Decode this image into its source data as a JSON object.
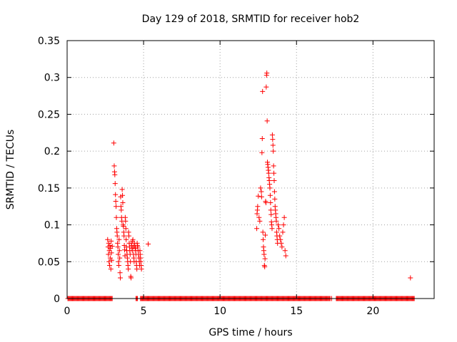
{
  "chart_data": {
    "type": "scatter",
    "title": "Day 129 of 2018, SRMTID for receiver hob2",
    "xlabel": "GPS time / hours",
    "ylabel": "SRMTID / TECUs",
    "xlim": [
      0,
      24
    ],
    "ylim": [
      0,
      0.35
    ],
    "xticks": [
      0,
      5,
      10,
      15,
      20
    ],
    "xtick_labels": [
      "0",
      "5",
      "10",
      "15",
      "20"
    ],
    "yticks": [
      0,
      0.05,
      0.1,
      0.15,
      0.2,
      0.25,
      0.3,
      0.35
    ],
    "ytick_labels": [
      "0",
      "0.05",
      "0.1",
      "0.15",
      "0.2",
      "0.25",
      "0.3",
      "0.35"
    ],
    "grid": true,
    "legend": false,
    "marker": "plus",
    "marker_color": "#ff0000",
    "zero_series": {
      "description_values": "dense band of points at SRMTID = 0",
      "ranges": [
        [
          0.05,
          2.95
        ],
        [
          4.8,
          17.2
        ],
        [
          17.6,
          22.7
        ]
      ],
      "step": 0.05,
      "extra_points": [
        4.5,
        4.55,
        4.6,
        17.3
      ]
    },
    "series": [
      {
        "name": "SRMTID",
        "points": [
          [
            2.65,
            0.08
          ],
          [
            2.68,
            0.07
          ],
          [
            2.7,
            0.06
          ],
          [
            2.72,
            0.075
          ],
          [
            2.74,
            0.05
          ],
          [
            2.76,
            0.065
          ],
          [
            2.78,
            0.045
          ],
          [
            2.8,
            0.072
          ],
          [
            2.82,
            0.055
          ],
          [
            2.84,
            0.068
          ],
          [
            2.86,
            0.04
          ],
          [
            2.88,
            0.078
          ],
          [
            2.9,
            0.062
          ],
          [
            2.92,
            0.052
          ],
          [
            2.95,
            0.071
          ],
          [
            3.05,
            0.211
          ],
          [
            3.08,
            0.18
          ],
          [
            3.1,
            0.172
          ],
          [
            3.12,
            0.168
          ],
          [
            3.14,
            0.156
          ],
          [
            3.16,
            0.141
          ],
          [
            3.18,
            0.132
          ],
          [
            3.2,
            0.125
          ],
          [
            3.22,
            0.11
          ],
          [
            3.24,
            0.095
          ],
          [
            3.26,
            0.09
          ],
          [
            3.28,
            0.085
          ],
          [
            3.3,
            0.075
          ],
          [
            3.32,
            0.07
          ],
          [
            3.34,
            0.06
          ],
          [
            3.36,
            0.05
          ],
          [
            3.38,
            0.045
          ],
          [
            3.4,
            0.08
          ],
          [
            3.42,
            0.065
          ],
          [
            3.44,
            0.055
          ],
          [
            3.46,
            0.035
          ],
          [
            3.48,
            0.028
          ],
          [
            3.5,
            0.138
          ],
          [
            3.52,
            0.125
          ],
          [
            3.54,
            0.12
          ],
          [
            3.56,
            0.11
          ],
          [
            3.58,
            0.105
          ],
          [
            3.6,
            0.148
          ],
          [
            3.62,
            0.14
          ],
          [
            3.64,
            0.13
          ],
          [
            3.66,
            0.1
          ],
          [
            3.68,
            0.098
          ],
          [
            3.7,
            0.09
          ],
          [
            3.72,
            0.085
          ],
          [
            3.74,
            0.072
          ],
          [
            3.76,
            0.066
          ],
          [
            3.78,
            0.058
          ],
          [
            3.8,
            0.11
          ],
          [
            3.82,
            0.105
          ],
          [
            3.84,
            0.095
          ],
          [
            3.86,
            0.08
          ],
          [
            3.88,
            0.07
          ],
          [
            3.9,
            0.065
          ],
          [
            3.92,
            0.06
          ],
          [
            3.94,
            0.055
          ],
          [
            3.96,
            0.05
          ],
          [
            3.98,
            0.045
          ],
          [
            4.0,
            0.04
          ],
          [
            4.02,
            0.09
          ],
          [
            4.04,
            0.085
          ],
          [
            4.06,
            0.075
          ],
          [
            4.08,
            0.07
          ],
          [
            4.1,
            0.065
          ],
          [
            4.12,
            0.06
          ],
          [
            4.14,
            0.05
          ],
          [
            4.16,
            0.03
          ],
          [
            4.18,
            0.028
          ],
          [
            4.2,
            0.075
          ],
          [
            4.22,
            0.072
          ],
          [
            4.24,
            0.068
          ],
          [
            4.26,
            0.065
          ],
          [
            4.28,
            0.078
          ],
          [
            4.3,
            0.08
          ],
          [
            4.32,
            0.07
          ],
          [
            4.34,
            0.06
          ],
          [
            4.36,
            0.055
          ],
          [
            4.38,
            0.05
          ],
          [
            4.4,
            0.075
          ],
          [
            4.42,
            0.072
          ],
          [
            4.44,
            0.07
          ],
          [
            4.46,
            0.068
          ],
          [
            4.48,
            0.065
          ],
          [
            4.5,
            0.06
          ],
          [
            4.52,
            0.05
          ],
          [
            4.54,
            0.045
          ],
          [
            4.56,
            0.04
          ],
          [
            4.58,
            0.075
          ],
          [
            4.6,
            0.072
          ],
          [
            4.62,
            0.07
          ],
          [
            4.64,
            0.065
          ],
          [
            4.66,
            0.06
          ],
          [
            4.7,
            0.055
          ],
          [
            4.72,
            0.05
          ],
          [
            4.74,
            0.045
          ],
          [
            4.76,
            0.065
          ],
          [
            4.78,
            0.06
          ],
          [
            4.8,
            0.055
          ],
          [
            4.82,
            0.05
          ],
          [
            4.84,
            0.045
          ],
          [
            4.86,
            0.04
          ],
          [
            5.3,
            0.074
          ],
          [
            12.4,
            0.095
          ],
          [
            12.42,
            0.115
          ],
          [
            12.44,
            0.12
          ],
          [
            12.46,
            0.125
          ],
          [
            12.5,
            0.139
          ],
          [
            12.55,
            0.11
          ],
          [
            12.6,
            0.105
          ],
          [
            12.65,
            0.15
          ],
          [
            12.7,
            0.145
          ],
          [
            12.72,
            0.138
          ],
          [
            12.74,
            0.198
          ],
          [
            12.76,
            0.217
          ],
          [
            12.78,
            0.281
          ],
          [
            12.8,
            0.09
          ],
          [
            12.82,
            0.08
          ],
          [
            12.84,
            0.07
          ],
          [
            12.86,
            0.065
          ],
          [
            12.88,
            0.06
          ],
          [
            12.9,
            0.045
          ],
          [
            12.92,
            0.043
          ],
          [
            12.94,
            0.054
          ],
          [
            12.96,
            0.086
          ],
          [
            12.98,
            0.132
          ],
          [
            13.0,
            0.13
          ],
          [
            13.02,
            0.287
          ],
          [
            13.04,
            0.303
          ],
          [
            13.06,
            0.306
          ],
          [
            13.08,
            0.241
          ],
          [
            13.1,
            0.185
          ],
          [
            13.12,
            0.182
          ],
          [
            13.14,
            0.178
          ],
          [
            13.16,
            0.174
          ],
          [
            13.18,
            0.17
          ],
          [
            13.2,
            0.164
          ],
          [
            13.22,
            0.16
          ],
          [
            13.24,
            0.155
          ],
          [
            13.26,
            0.15
          ],
          [
            13.28,
            0.14
          ],
          [
            13.3,
            0.13
          ],
          [
            13.32,
            0.12
          ],
          [
            13.34,
            0.114
          ],
          [
            13.36,
            0.104
          ],
          [
            13.38,
            0.1
          ],
          [
            13.4,
            0.095
          ],
          [
            13.42,
            0.222
          ],
          [
            13.44,
            0.216
          ],
          [
            13.46,
            0.208
          ],
          [
            13.48,
            0.2
          ],
          [
            13.5,
            0.18
          ],
          [
            13.52,
            0.17
          ],
          [
            13.54,
            0.16
          ],
          [
            13.56,
            0.145
          ],
          [
            13.58,
            0.135
          ],
          [
            13.6,
            0.125
          ],
          [
            13.62,
            0.12
          ],
          [
            13.64,
            0.115
          ],
          [
            13.66,
            0.11
          ],
          [
            13.68,
            0.105
          ],
          [
            13.7,
            0.09
          ],
          [
            13.72,
            0.085
          ],
          [
            13.74,
            0.08
          ],
          [
            13.76,
            0.075
          ],
          [
            13.8,
            0.1
          ],
          [
            13.85,
            0.095
          ],
          [
            13.9,
            0.085
          ],
          [
            13.95,
            0.08
          ],
          [
            14.0,
            0.075
          ],
          [
            14.05,
            0.07
          ],
          [
            14.1,
            0.09
          ],
          [
            14.15,
            0.1
          ],
          [
            14.2,
            0.11
          ],
          [
            14.25,
            0.065
          ],
          [
            14.3,
            0.058
          ],
          [
            22.45,
            0.028
          ]
        ]
      }
    ]
  }
}
